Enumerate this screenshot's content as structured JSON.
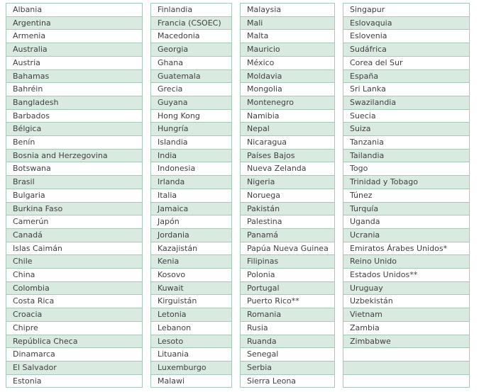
{
  "page": {
    "background_color": "#ffffff",
    "row_alt_color": "#d9eae1",
    "border_color": "#a6c8b6",
    "text_color": "#3f3f3f"
  },
  "table": {
    "columns": [
      [
        "Albania",
        "Argentina",
        "Armenia",
        "Australia",
        "Austria",
        "Bahamas",
        "Bahréin",
        "Bangladesh",
        "Barbados",
        "Bélgica",
        "Benín",
        "Bosnia and Herzegovina",
        "Botswana",
        "Brasil",
        "Bulgaria",
        "Burkina Faso",
        "Camerún",
        "Canadá",
        "Islas Caimán",
        "Chile",
        "China",
        "Colombia",
        "Costa Rica",
        "Croacia",
        "Chipre",
        "República Checa",
        "Dinamarca",
        "El Salvador",
        "Estonia"
      ],
      [
        "Finlandia",
        "Francia (CSOEC)",
        "Macedonia",
        "Georgia",
        "Ghana",
        "Guatemala",
        "Grecia",
        "Guyana",
        "Hong Kong",
        "Hungría",
        "Islandia",
        "India",
        "Indonesia",
        "Irlanda",
        "Italia",
        "Jamaica",
        "Japón",
        "Jordania",
        "Kazajistán",
        "Kenia",
        "Kosovo",
        "Kuwait",
        "Kirguistán",
        "Letonia",
        "Lebanon",
        "Lesoto",
        "Lituania",
        "Luxemburgo",
        "Malawi"
      ],
      [
        "Malaysia",
        "Mali",
        "Malta",
        "Mauricio",
        "México",
        "Moldavia",
        "Mongolia",
        "Montenegro",
        "Namibia",
        "Nepal",
        "Nicaragua",
        "Países Bajos",
        "Nueva Zelanda",
        "Nigeria",
        "Noruega",
        "Pakistán",
        "Palestina",
        "Panamá",
        "Papúa Nueva Guinea",
        "Filipinas",
        "Polonia",
        "Portugal",
        "Puerto Rico**",
        "Romania",
        "Rusia",
        "Ruanda",
        "Senegal",
        "Serbia",
        "Sierra Leona"
      ],
      [
        "Singapur",
        "Eslovaquia",
        "Eslovenia",
        "Sudáfrica",
        "Corea del Sur",
        "España",
        "Sri Lanka",
        "Swazilandia",
        "Suecia",
        "Suiza",
        "Tanzania",
        "Tailandia",
        "Togo",
        "Trinidad y Tobago",
        "Túnez",
        "Turquía",
        "Uganda",
        "Ucrania",
        "Emiratos Árabes Unidos*",
        "Reino Unido",
        "Estados Unidos**",
        "Uruguay",
        "Uzbekistán",
        "Vietnam",
        "Zambia",
        "Zimbabwe",
        "",
        "",
        ""
      ]
    ]
  }
}
